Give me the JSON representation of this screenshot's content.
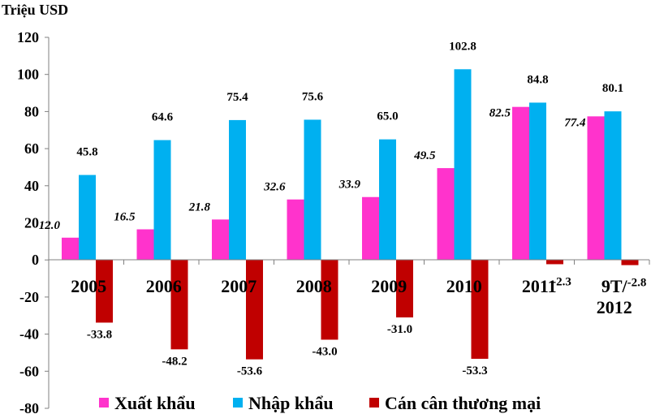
{
  "chart_data": {
    "type": "bar",
    "unit_label": "Triệu USD",
    "categories": [
      "2005",
      "2006",
      "2007",
      "2008",
      "2009",
      "2010",
      "2011",
      "9T/2012"
    ],
    "category_lines": [
      [
        "2005"
      ],
      [
        "2006"
      ],
      [
        "2007"
      ],
      [
        "2008"
      ],
      [
        "2009"
      ],
      [
        "2010"
      ],
      [
        "2011"
      ],
      [
        "9T/",
        "2012"
      ]
    ],
    "series": [
      {
        "name": "Xuất khẩu",
        "color": "#ff33cc",
        "values": [
          12.0,
          16.5,
          21.8,
          32.6,
          33.9,
          49.5,
          82.5,
          77.4
        ],
        "labels": [
          "12.0",
          "16.5",
          "21.8",
          "32.6",
          "33.9",
          "49.5",
          "82.5",
          "77.4"
        ]
      },
      {
        "name": "Nhập khẩu",
        "color": "#00b0f0",
        "values": [
          45.8,
          64.6,
          75.4,
          75.6,
          65.0,
          102.8,
          84.8,
          80.1
        ],
        "labels": [
          "45.8",
          "64.6",
          "75.4",
          "75.6",
          "65.0",
          "102.8",
          "84.8",
          "80.1"
        ]
      },
      {
        "name": "Cán cân thương mại",
        "color": "#c00000",
        "values": [
          -33.8,
          -48.2,
          -53.6,
          -43.0,
          -31.0,
          -53.3,
          -2.3,
          -2.8
        ],
        "labels": [
          "-33.8",
          "-48.2",
          "-53.6",
          "-43.0",
          "-31.0",
          "-53.3",
          "-2.3",
          "-2.8"
        ]
      }
    ],
    "ylim": [
      -80,
      120
    ],
    "yticks": [
      "120",
      "100",
      "80",
      "60",
      "40",
      "20",
      "0",
      "-20",
      "-40",
      "-60",
      "-80"
    ],
    "grid": false,
    "legend": "bottom"
  }
}
